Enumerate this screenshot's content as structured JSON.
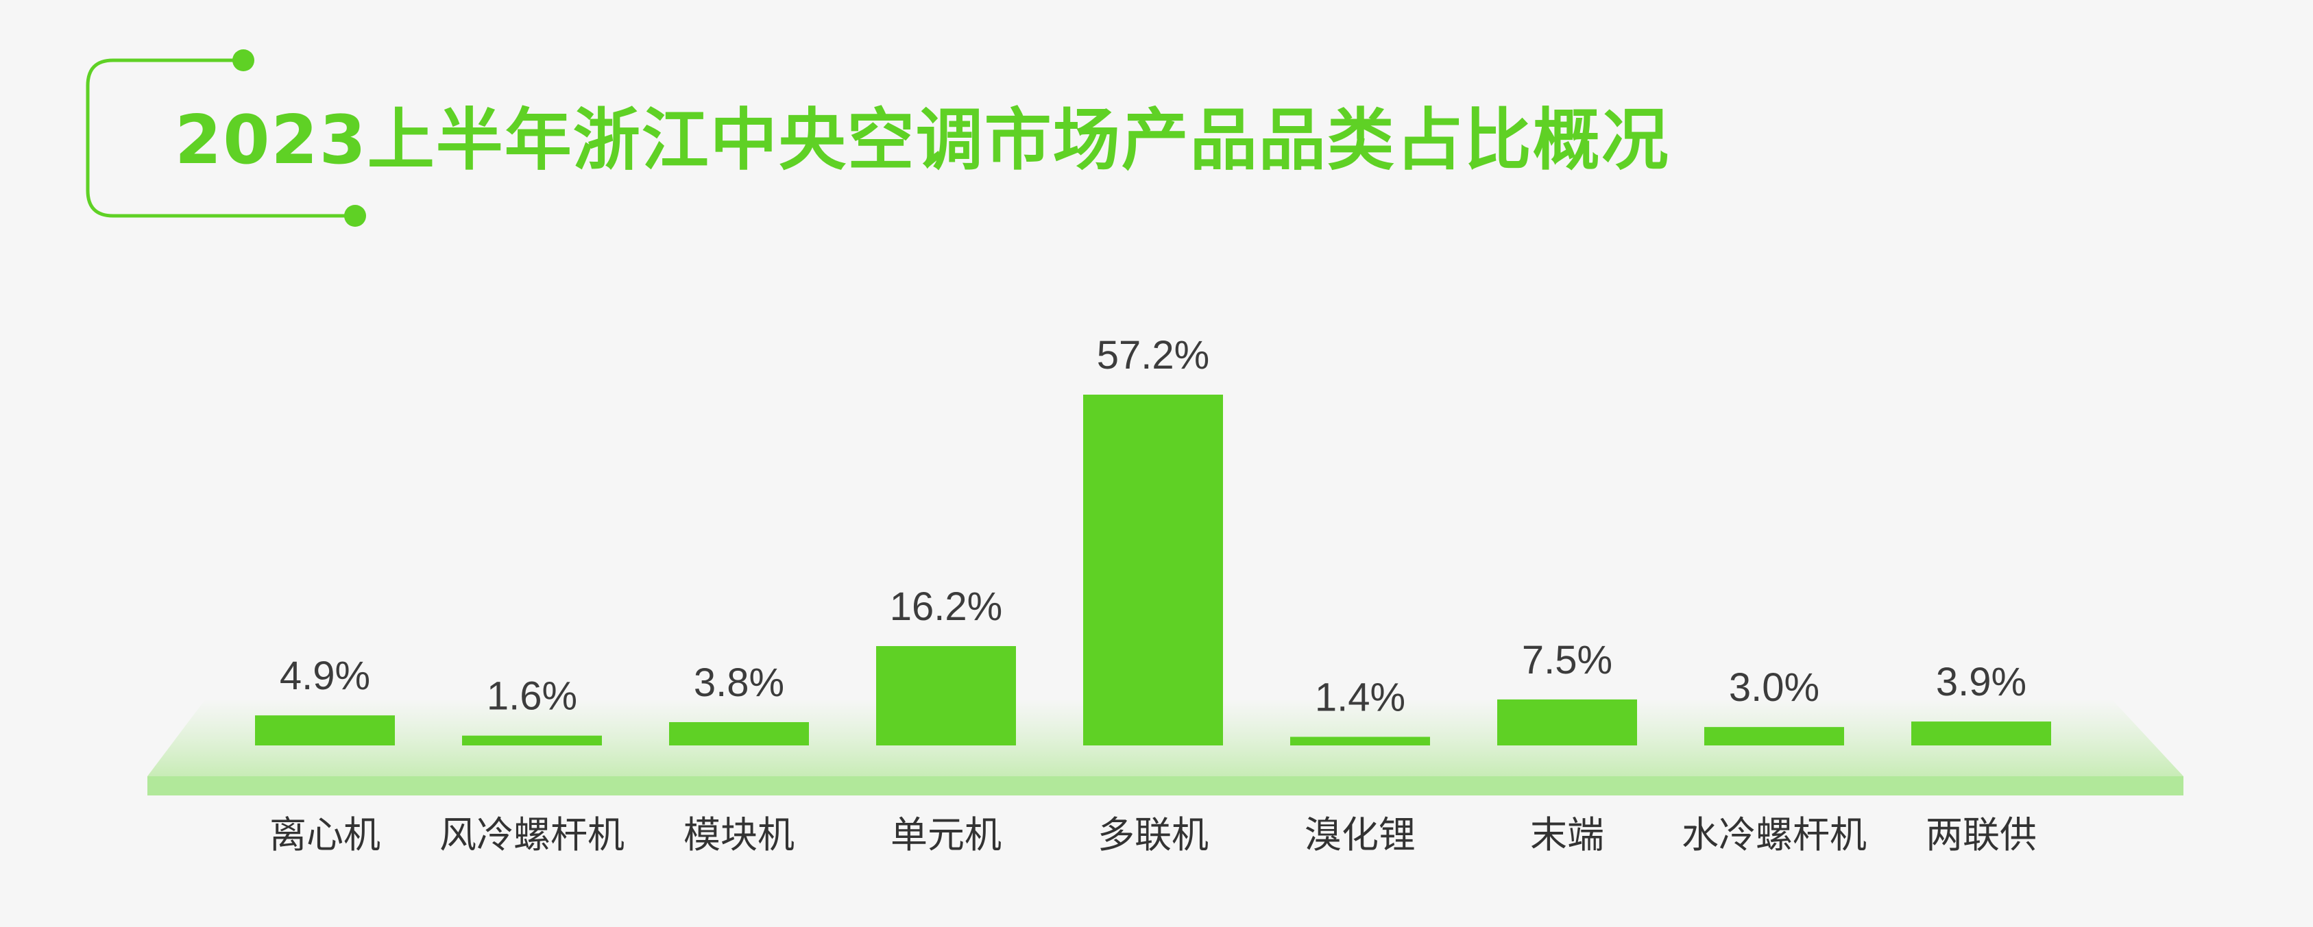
{
  "title": "2023上半年浙江中央空调市场产品品类占比概况",
  "colors": {
    "accent": "#5fd125",
    "platform": "#b1e89a",
    "platform_glow": "#cdeec0",
    "value_text": "#3c3c3c",
    "category_text": "#333333",
    "background": "#f6f6f6"
  },
  "chart_data": {
    "type": "bar",
    "title": "2023上半年浙江中央空调市场产品品类占比概况",
    "categories": [
      "离心机",
      "风冷螺杆机",
      "模块机",
      "单元机",
      "多联机",
      "溴化锂",
      "末端",
      "水冷螺杆机",
      "两联供"
    ],
    "values": [
      4.9,
      1.6,
      3.8,
      16.2,
      57.2,
      1.4,
      7.5,
      3.0,
      3.9
    ],
    "value_labels": [
      "4.9%",
      "1.6%",
      "3.8%",
      "16.2%",
      "57.2%",
      "1.4%",
      "7.5%",
      "3.0%",
      "3.9%"
    ],
    "unit": "%",
    "xlabel": "",
    "ylabel": "",
    "ylim": [
      0,
      57.2
    ],
    "grid": false,
    "legend": "none"
  }
}
